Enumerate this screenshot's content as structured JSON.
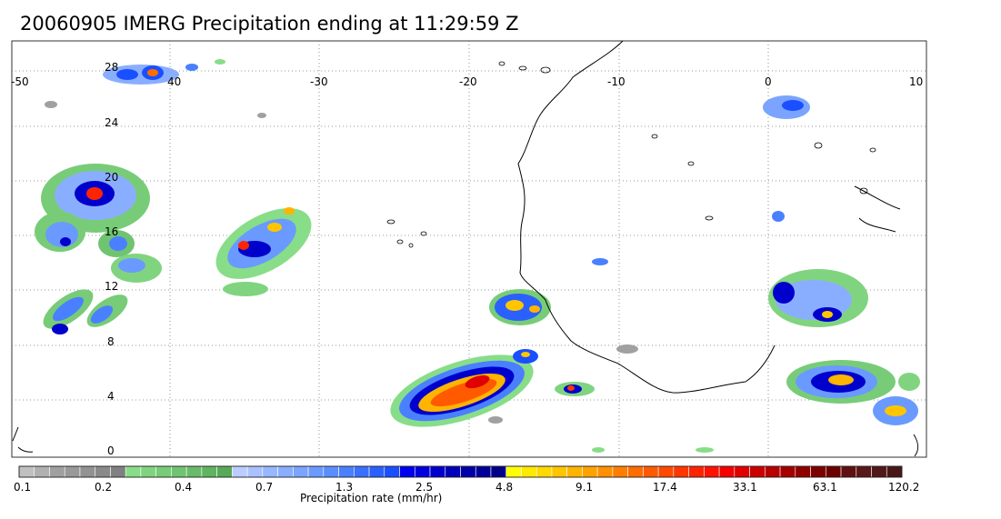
{
  "title": "20060905 IMERG Precipitation ending at 11:29:59 Z",
  "map": {
    "lon_ticks": [
      "-50",
      "40",
      "-30",
      "-20",
      "-10",
      "0",
      "10"
    ],
    "lat_ticks": [
      "28",
      "24",
      "20",
      "16",
      "12",
      "8",
      "4",
      "0"
    ]
  },
  "colorbar": {
    "unit_label": "Precipitation rate (mm/hr)",
    "tick_labels": [
      "0.1",
      "0.2",
      "0.4",
      "0.7",
      "1.3",
      "2.5",
      "4.8",
      "9.1",
      "17.4",
      "33.1",
      "63.1",
      "120.2"
    ],
    "colors": [
      "#c0c0c0",
      "#b0b0b0",
      "#a0a0a0",
      "#999999",
      "#929292",
      "#8a8a8a",
      "#808080",
      "#88dd88",
      "#80d480",
      "#78cc78",
      "#70c470",
      "#68bb68",
      "#60b460",
      "#58aa58",
      "#bbccff",
      "#a9c2ff",
      "#97b7ff",
      "#8aaeff",
      "#7aa4ff",
      "#6a9aff",
      "#5a8eff",
      "#4a80ff",
      "#3a70ff",
      "#2a60ff",
      "#1a4fff",
      "#0000ee",
      "#0000dd",
      "#0000cc",
      "#0000bb",
      "#0000aa",
      "#000099",
      "#000088",
      "#ffff00",
      "#ffe900",
      "#ffd800",
      "#ffc600",
      "#ffb400",
      "#ffa200",
      "#ff9000",
      "#ff7e00",
      "#ff6c00",
      "#ff5a00",
      "#ff4800",
      "#ff3600",
      "#ff2400",
      "#ff1200",
      "#f50000",
      "#e00000",
      "#cc0000",
      "#b80000",
      "#a40000",
      "#900000",
      "#7c0000",
      "#6c0000",
      "#601010",
      "#581818",
      "#501818",
      "#481818"
    ]
  }
}
